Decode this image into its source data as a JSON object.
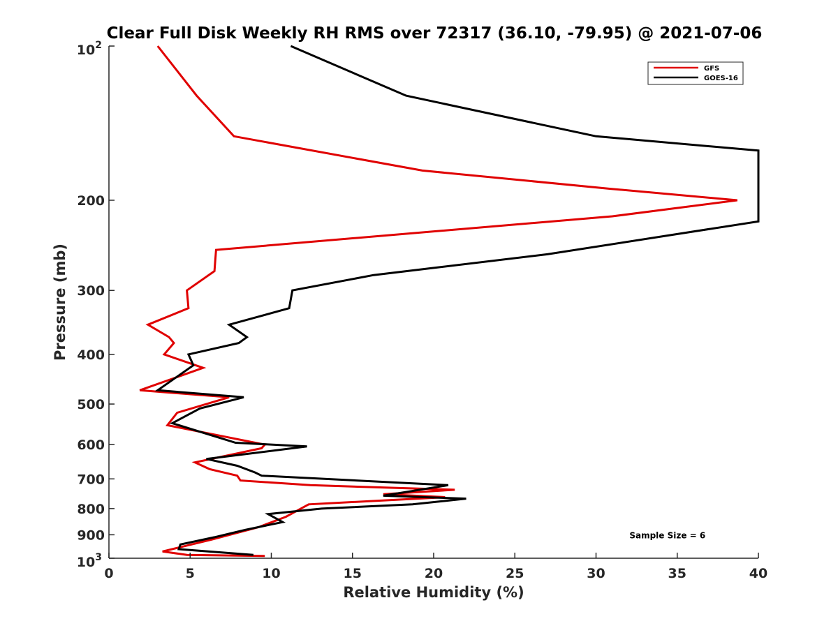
{
  "chart_data": {
    "type": "line",
    "title": "Clear Full Disk Weekly RH RMS over 72317 (36.10, -79.95) @ 2021-07-06",
    "xlabel": "Relative Humidity (%)",
    "ylabel": "Pressure (mb)",
    "xlim": [
      0,
      40
    ],
    "ylim": [
      100,
      1000
    ],
    "yscale": "log",
    "y_reversed": true,
    "grid": false,
    "legend_position": "top-right",
    "x_ticks": [
      "0",
      "5",
      "10",
      "15",
      "20",
      "25",
      "30",
      "35",
      "40"
    ],
    "y_ticks": [
      {
        "value": 100,
        "base": "10",
        "exp": "2"
      },
      {
        "value": 200,
        "label": "200"
      },
      {
        "value": 300,
        "label": "300"
      },
      {
        "value": 400,
        "label": "400"
      },
      {
        "value": 500,
        "label": "500"
      },
      {
        "value": 600,
        "label": "600"
      },
      {
        "value": 700,
        "label": "700"
      },
      {
        "value": 800,
        "label": "800"
      },
      {
        "value": 900,
        "label": "900"
      },
      {
        "value": 1000,
        "base": "10",
        "exp": "3"
      }
    ],
    "series": [
      {
        "name": "GFS",
        "color": "#e00000",
        "points": [
          [
            3.0,
            100
          ],
          [
            5.4,
            125
          ],
          [
            7.7,
            150
          ],
          [
            19.3,
            175
          ],
          [
            30.9,
            190
          ],
          [
            38.7,
            200
          ],
          [
            31.0,
            215
          ],
          [
            6.6,
            250
          ],
          [
            6.5,
            275
          ],
          [
            4.8,
            300
          ],
          [
            4.9,
            325
          ],
          [
            2.4,
            350
          ],
          [
            3.7,
            370
          ],
          [
            4.0,
            380
          ],
          [
            3.4,
            400
          ],
          [
            5.8,
            425
          ],
          [
            1.9,
            470
          ],
          [
            7.4,
            485
          ],
          [
            4.2,
            520
          ],
          [
            3.6,
            550
          ],
          [
            9.6,
            600
          ],
          [
            9.4,
            610
          ],
          [
            5.3,
            650
          ],
          [
            6.2,
            670
          ],
          [
            7.9,
            690
          ],
          [
            8.1,
            705
          ],
          [
            12.4,
            720
          ],
          [
            21.3,
            735
          ],
          [
            16.9,
            750
          ],
          [
            20.7,
            760
          ],
          [
            12.3,
            785
          ],
          [
            10.9,
            830
          ],
          [
            9.2,
            870
          ],
          [
            6.3,
            920
          ],
          [
            4.5,
            950
          ],
          [
            3.3,
            970
          ],
          [
            4.8,
            985
          ],
          [
            9.6,
            990
          ]
        ]
      },
      {
        "name": "GOES-16",
        "color": "#000000",
        "points": [
          [
            11.2,
            100
          ],
          [
            18.3,
            125
          ],
          [
            30.0,
            150
          ],
          [
            40.0,
            160
          ],
          [
            40.0,
            220
          ],
          [
            27.0,
            255
          ],
          [
            16.3,
            280
          ],
          [
            11.3,
            300
          ],
          [
            11.1,
            325
          ],
          [
            7.4,
            350
          ],
          [
            8.5,
            370
          ],
          [
            8.0,
            380
          ],
          [
            4.9,
            400
          ],
          [
            5.2,
            420
          ],
          [
            3.0,
            470
          ],
          [
            8.3,
            485
          ],
          [
            5.6,
            510
          ],
          [
            3.9,
            545
          ],
          [
            7.8,
            595
          ],
          [
            12.2,
            605
          ],
          [
            6.0,
            640
          ],
          [
            7.9,
            660
          ],
          [
            9.0,
            680
          ],
          [
            9.4,
            690
          ],
          [
            20.9,
            720
          ],
          [
            16.9,
            755
          ],
          [
            22.0,
            765
          ],
          [
            18.7,
            785
          ],
          [
            13.1,
            800
          ],
          [
            9.8,
            820
          ],
          [
            10.7,
            850
          ],
          [
            8.4,
            880
          ],
          [
            6.5,
            910
          ],
          [
            4.4,
            940
          ],
          [
            4.3,
            960
          ],
          [
            8.9,
            985
          ]
        ]
      }
    ],
    "annotations": [
      {
        "text": "Sample Size = 6",
        "x": 34.4,
        "y": 900
      }
    ]
  }
}
